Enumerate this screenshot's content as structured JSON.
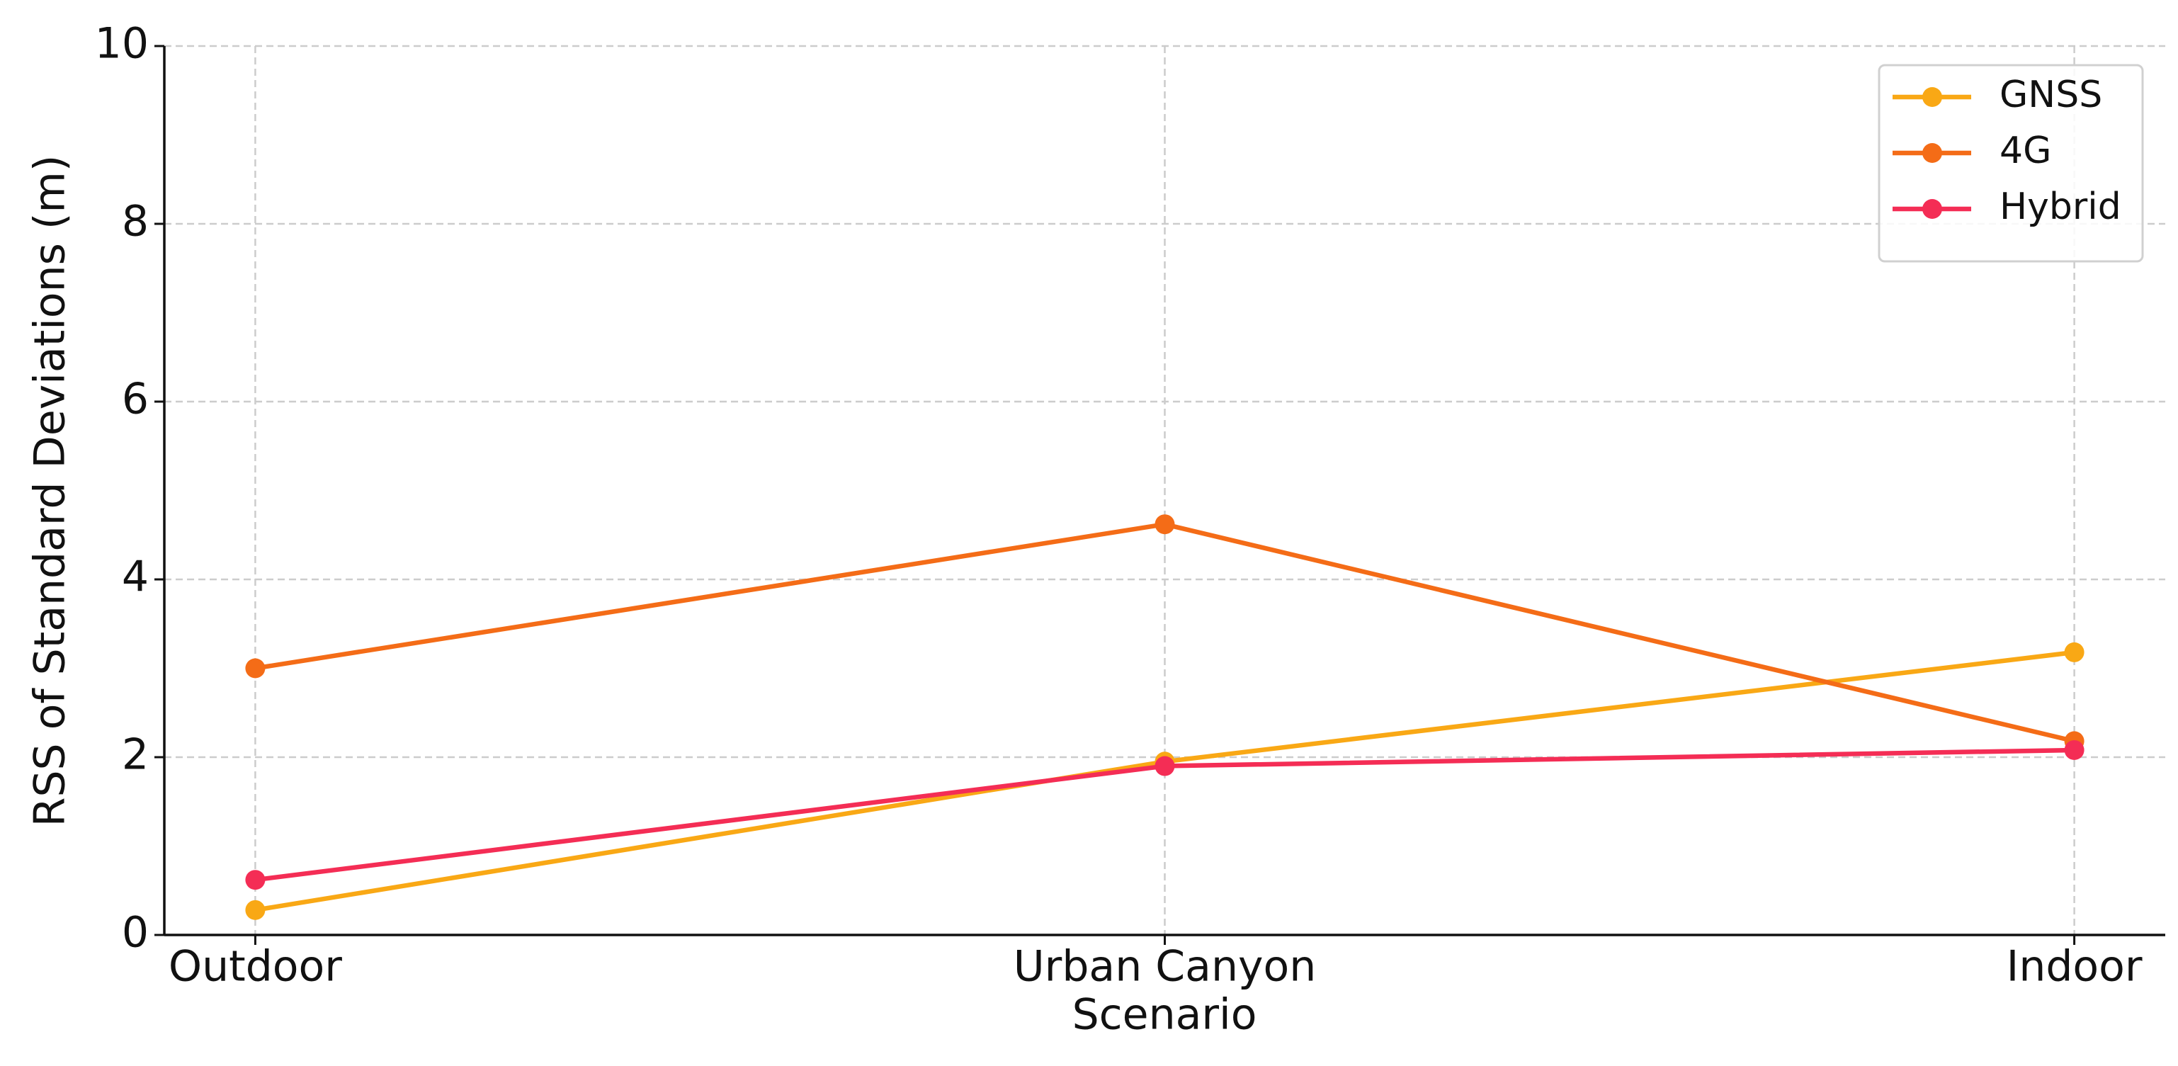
{
  "chart_data": {
    "type": "line",
    "x_label": "Scenario",
    "y_label": "RSS of Standard Deviations (m)",
    "categories": [
      "Outdoor",
      "Urban Canyon",
      "Indoor"
    ],
    "series": [
      {
        "name": "GNSS",
        "color": "#f9a815",
        "values": [
          0.28,
          1.95,
          3.18
        ]
      },
      {
        "name": "4G",
        "color": "#f46c17",
        "values": [
          3.0,
          4.62,
          2.18
        ]
      },
      {
        "name": "Hybrid",
        "color": "#f42d55",
        "values": [
          0.62,
          1.9,
          2.08
        ]
      }
    ],
    "ylim": [
      0,
      10
    ],
    "yticks": [
      0,
      2,
      4,
      6,
      8,
      10
    ],
    "grid": true,
    "legend": "upper right"
  }
}
